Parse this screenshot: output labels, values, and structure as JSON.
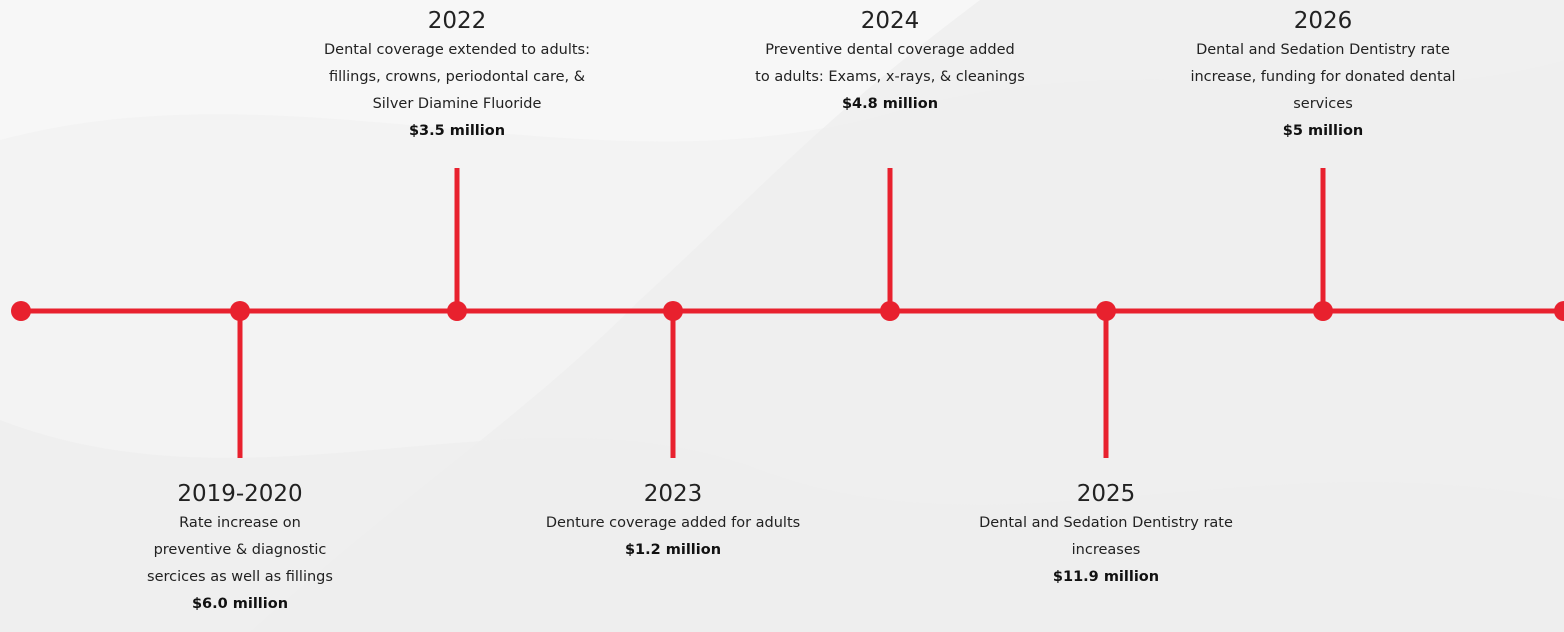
{
  "timeline": {
    "line_color": "#e8212e",
    "events": [
      {
        "year": "2019-2020",
        "description": "Rate increase on preventive & diagnostic sercices as well as fillings",
        "description_lines": [
          "Rate increase on",
          "preventive & diagnostic",
          "sercices as well as fillings"
        ],
        "amount": "$6.0 million",
        "side": "below"
      },
      {
        "year": "2022",
        "description": "Dental coverage extended to adults: fillings, crowns, periodontal care, & Silver Diamine Fluoride",
        "description_lines": [
          "Dental coverage extended to adults:",
          "fillings, crowns, periodontal care, &",
          "Silver Diamine  Fluoride"
        ],
        "amount": "$3.5 million",
        "side": "above"
      },
      {
        "year": "2023",
        "description": "Denture coverage added for adults",
        "description_lines": [
          "Denture coverage added for adults"
        ],
        "amount": "$1.2 million",
        "side": "below"
      },
      {
        "year": "2024",
        "description": "Preventive dental coverage added to adults: Exams, x-rays, & cleanings",
        "description_lines": [
          "Preventive dental coverage added",
          "to adults: Exams, x-rays, & cleanings"
        ],
        "amount": "$4.8 million",
        "side": "above"
      },
      {
        "year": "2025",
        "description": "Dental and Sedation Dentistry rate increases",
        "description_lines": [
          "Dental and Sedation Dentistry rate",
          "increases"
        ],
        "amount": "$11.9 million",
        "side": "below"
      },
      {
        "year": "2026",
        "description": "Dental and Sedation Dentistry rate increase, funding for donated dental services",
        "description_lines": [
          "Dental and Sedation Dentistry rate",
          "increase, funding for donated dental",
          "services"
        ],
        "amount": "$5 million",
        "side": "above"
      }
    ]
  }
}
